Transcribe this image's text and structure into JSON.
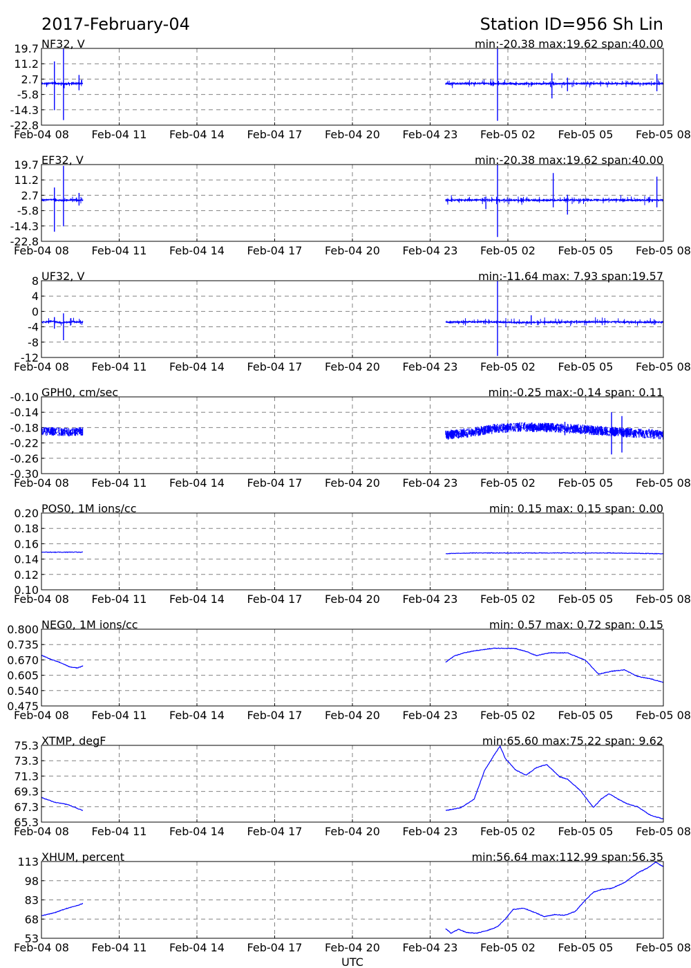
{
  "header": {
    "date": "2017-February-04",
    "station": "Station ID=956  Sh Lin"
  },
  "x_axis_label": "UTC",
  "x_ticks": [
    "Feb-04 08",
    "Feb-04 11",
    "Feb-04 14",
    "Feb-04 17",
    "Feb-04 20",
    "Feb-04 23",
    "Feb-05 02",
    "Feb-05 05",
    "Feb-05 08"
  ],
  "colors": {
    "series": "#0000ff",
    "grid": "#808080",
    "frame": "#000000"
  },
  "chart_data": [
    {
      "type": "line",
      "title": "NF32, V",
      "stats": "min:-20.38 max:19.62 span:40.00",
      "ylim": [
        -22.8,
        19.7
      ],
      "yticks": [
        "19.7",
        "11.2",
        "2.7",
        "-5.8",
        "-14.3",
        "-22.8"
      ],
      "x_unit": "hours since Feb-04 08 UTC",
      "gaps": [
        [
          1.6,
          15.6
        ]
      ],
      "style": "spiky",
      "segments": [
        {
          "x": [
            0,
            0.4,
            0.8,
            1.2,
            1.6
          ],
          "y": [
            0.2,
            0.5,
            0.1,
            0.3,
            0.2
          ]
        },
        {
          "x": [
            15.6,
            17.0,
            18.5,
            20.0,
            21.5,
            23.0,
            24.0
          ],
          "y": [
            0.2,
            0.3,
            0.1,
            0.2,
            0.3,
            0.2,
            0.2
          ]
        }
      ],
      "spikes": [
        {
          "x": 0.5,
          "lo": -14.5,
          "hi": 12.5
        },
        {
          "x": 0.85,
          "lo": -20.0,
          "hi": 19.5
        },
        {
          "x": 1.45,
          "lo": -3.5,
          "hi": 5.0
        },
        {
          "x": 17.6,
          "lo": -20.4,
          "hi": 19.6
        },
        {
          "x": 19.7,
          "lo": -8.0,
          "hi": 6.0
        },
        {
          "x": 20.3,
          "lo": -4.0,
          "hi": 3.5
        },
        {
          "x": 23.75,
          "lo": -4.0,
          "hi": 5.5
        }
      ]
    },
    {
      "type": "line",
      "title": "EF32, V",
      "stats": "min:-20.38 max:19.62 span:40.00",
      "ylim": [
        -22.8,
        19.7
      ],
      "yticks": [
        "19.7",
        "11.2",
        "2.7",
        "-5.8",
        "-14.3",
        "-22.8"
      ],
      "x_unit": "hours since Feb-04 08 UTC",
      "gaps": [
        [
          1.6,
          15.6
        ]
      ],
      "style": "spiky",
      "segments": [
        {
          "x": [
            0,
            0.4,
            0.8,
            1.2,
            1.6
          ],
          "y": [
            0.0,
            0.3,
            -0.2,
            0.1,
            0.0
          ]
        },
        {
          "x": [
            15.6,
            17.0,
            18.5,
            20.0,
            21.5,
            23.0,
            24.0
          ],
          "y": [
            0.0,
            0.1,
            -0.1,
            0.0,
            0.1,
            0.0,
            0.0
          ]
        }
      ],
      "spikes": [
        {
          "x": 0.5,
          "lo": -17.5,
          "hi": 7.0
        },
        {
          "x": 0.85,
          "lo": -14.5,
          "hi": 19.0
        },
        {
          "x": 1.45,
          "lo": -3.0,
          "hi": 4.0
        },
        {
          "x": 17.15,
          "lo": -5.0,
          "hi": 2.0
        },
        {
          "x": 17.6,
          "lo": -20.4,
          "hi": 19.6
        },
        {
          "x": 19.75,
          "lo": -4.0,
          "hi": 15.0
        },
        {
          "x": 20.3,
          "lo": -8.0,
          "hi": 3.0
        },
        {
          "x": 23.75,
          "lo": -4.0,
          "hi": 13.0
        }
      ]
    },
    {
      "type": "line",
      "title": "UF32, V",
      "stats": "min:-11.64 max: 7.93 span:19.57",
      "ylim": [
        -12,
        8
      ],
      "yticks": [
        "8",
        "4",
        "0",
        "-4",
        "-8",
        "-12"
      ],
      "x_unit": "hours since Feb-04 08 UTC",
      "gaps": [
        [
          1.6,
          15.6
        ]
      ],
      "style": "spiky",
      "segments": [
        {
          "x": [
            0,
            0.4,
            0.8,
            1.2,
            1.6
          ],
          "y": [
            -2.8,
            -2.6,
            -2.9,
            -2.7,
            -2.8
          ]
        },
        {
          "x": [
            15.6,
            17.0,
            18.5,
            20.0,
            21.5,
            23.0,
            24.0
          ],
          "y": [
            -2.8,
            -2.7,
            -2.9,
            -2.8,
            -2.7,
            -2.8,
            -2.8
          ]
        }
      ],
      "spikes": [
        {
          "x": 0.5,
          "lo": -4.5,
          "hi": -1.5
        },
        {
          "x": 0.85,
          "lo": -7.5,
          "hi": -0.5
        },
        {
          "x": 17.6,
          "lo": -11.6,
          "hi": 7.9
        },
        {
          "x": 18.9,
          "lo": -3.5,
          "hi": -1.0
        }
      ]
    },
    {
      "type": "line",
      "title": "GPH0, cm/sec",
      "stats": "min:-0.25 max:-0.14 span: 0.11",
      "ylim": [
        -0.3,
        -0.1
      ],
      "yticks": [
        "-0.10",
        "-0.14",
        "-0.18",
        "-0.22",
        "-0.26",
        "-0.30"
      ],
      "x_unit": "hours since Feb-04 08 UTC",
      "gaps": [
        [
          1.6,
          15.6
        ]
      ],
      "style": "band",
      "segments": [
        {
          "x": [
            0,
            0.5,
            1.0,
            1.6
          ],
          "y": [
            -0.19,
            -0.19,
            -0.192,
            -0.19
          ],
          "spread": 0.014
        },
        {
          "x": [
            15.6,
            16.5,
            17.5,
            18.5,
            19.5,
            20.5,
            21.5,
            22.5,
            23.5,
            24.0
          ],
          "y": [
            -0.2,
            -0.193,
            -0.183,
            -0.178,
            -0.18,
            -0.183,
            -0.188,
            -0.193,
            -0.196,
            -0.199
          ],
          "spread": 0.016
        }
      ],
      "spikes": [
        {
          "x": 20.2,
          "lo": -0.2,
          "hi": -0.165
        },
        {
          "x": 22.0,
          "lo": -0.25,
          "hi": -0.14
        },
        {
          "x": 22.4,
          "lo": -0.245,
          "hi": -0.15
        }
      ]
    },
    {
      "type": "line",
      "title": "POS0, 1M ions/cc",
      "stats": "min: 0.15 max: 0.15 span: 0.00",
      "ylim": [
        0.1,
        0.2
      ],
      "yticks": [
        "0.20",
        "0.18",
        "0.16",
        "0.14",
        "0.12",
        "0.10"
      ],
      "x_unit": "hours since Feb-04 08 UTC",
      "gaps": [
        [
          1.6,
          15.6
        ]
      ],
      "style": "line",
      "segments": [
        {
          "x": [
            0,
            1.6
          ],
          "y": [
            0.149,
            0.149
          ]
        },
        {
          "x": [
            15.6,
            16.5,
            18.0,
            20.0,
            22.0,
            24.0
          ],
          "y": [
            0.147,
            0.148,
            0.148,
            0.148,
            0.148,
            0.147
          ]
        }
      ],
      "spikes": []
    },
    {
      "type": "line",
      "title": "NEG0, 1M ions/cc",
      "stats": "min: 0.57 max: 0.72 span: 0.15",
      "ylim": [
        0.475,
        0.8
      ],
      "yticks": [
        "0.800",
        "0.735",
        "0.670",
        "0.605",
        "0.540",
        "0.475"
      ],
      "x_unit": "hours since Feb-04 08 UTC",
      "gaps": [
        [
          1.6,
          15.6
        ]
      ],
      "style": "line",
      "segments": [
        {
          "x": [
            0,
            0.3,
            0.7,
            1.1,
            1.4,
            1.6
          ],
          "y": [
            0.69,
            0.675,
            0.66,
            0.64,
            0.636,
            0.645
          ]
        },
        {
          "x": [
            15.6,
            15.9,
            16.3,
            16.8,
            17.5,
            18.3,
            18.8,
            19.1,
            19.6,
            20.3,
            21.0,
            21.5,
            22.0,
            22.5,
            23.0,
            23.5,
            24.0
          ],
          "y": [
            0.66,
            0.685,
            0.7,
            0.71,
            0.72,
            0.718,
            0.702,
            0.688,
            0.7,
            0.7,
            0.668,
            0.61,
            0.622,
            0.628,
            0.6,
            0.59,
            0.575
          ]
        }
      ],
      "spikes": []
    },
    {
      "type": "line",
      "title": "XTMP, degF",
      "stats": "min:65.60 max:75.22 span: 9.62",
      "ylim": [
        65.3,
        75.3
      ],
      "yticks": [
        "75.3",
        "73.3",
        "71.3",
        "69.3",
        "67.3",
        "65.3"
      ],
      "x_unit": "hours since Feb-04 08 UTC",
      "gaps": [
        [
          1.6,
          15.6
        ]
      ],
      "style": "line",
      "segments": [
        {
          "x": [
            0,
            0.5,
            1.0,
            1.6
          ],
          "y": [
            68.5,
            67.9,
            67.6,
            66.8
          ]
        },
        {
          "x": [
            15.6,
            16.2,
            16.7,
            17.1,
            17.5,
            17.7,
            17.9,
            18.3,
            18.7,
            19.1,
            19.5,
            20.0,
            20.3,
            20.8,
            21.3,
            21.6,
            21.9,
            22.2,
            22.6,
            23.0,
            23.5,
            24.0
          ],
          "y": [
            66.8,
            67.2,
            68.3,
            72.0,
            74.2,
            75.2,
            73.6,
            72.1,
            71.4,
            72.4,
            72.8,
            71.2,
            70.9,
            69.4,
            67.2,
            68.3,
            69.0,
            68.4,
            67.7,
            67.3,
            66.2,
            65.7
          ]
        }
      ],
      "spikes": []
    },
    {
      "type": "line",
      "title": "XHUM, percent",
      "stats": "min:56.64 max:112.99 span:56.35",
      "ylim": [
        53,
        113
      ],
      "yticks": [
        "113",
        "98",
        "83",
        "68",
        "53"
      ],
      "x_unit": "hours since Feb-04 08 UTC",
      "gaps": [
        [
          1.6,
          15.6
        ]
      ],
      "style": "line",
      "segments": [
        {
          "x": [
            0,
            0.5,
            1.0,
            1.4,
            1.6
          ],
          "y": [
            70.5,
            73.0,
            76.5,
            78.7,
            80.2
          ]
        },
        {
          "x": [
            15.6,
            15.8,
            16.1,
            16.4,
            16.8,
            17.2,
            17.6,
            17.9,
            18.2,
            18.6,
            19.0,
            19.4,
            19.8,
            20.2,
            20.6,
            21.0,
            21.3,
            21.6,
            22.0,
            22.5,
            23.0,
            23.4,
            23.7,
            24.0
          ],
          "y": [
            60.5,
            57.0,
            60.0,
            57.5,
            57.0,
            59.0,
            62.0,
            68.0,
            75.5,
            76.5,
            73.5,
            70.0,
            71.5,
            71.0,
            74.0,
            83.0,
            89.0,
            91.0,
            92.0,
            96.5,
            104.0,
            108.0,
            112.5,
            109.0
          ]
        }
      ],
      "spikes": []
    }
  ]
}
